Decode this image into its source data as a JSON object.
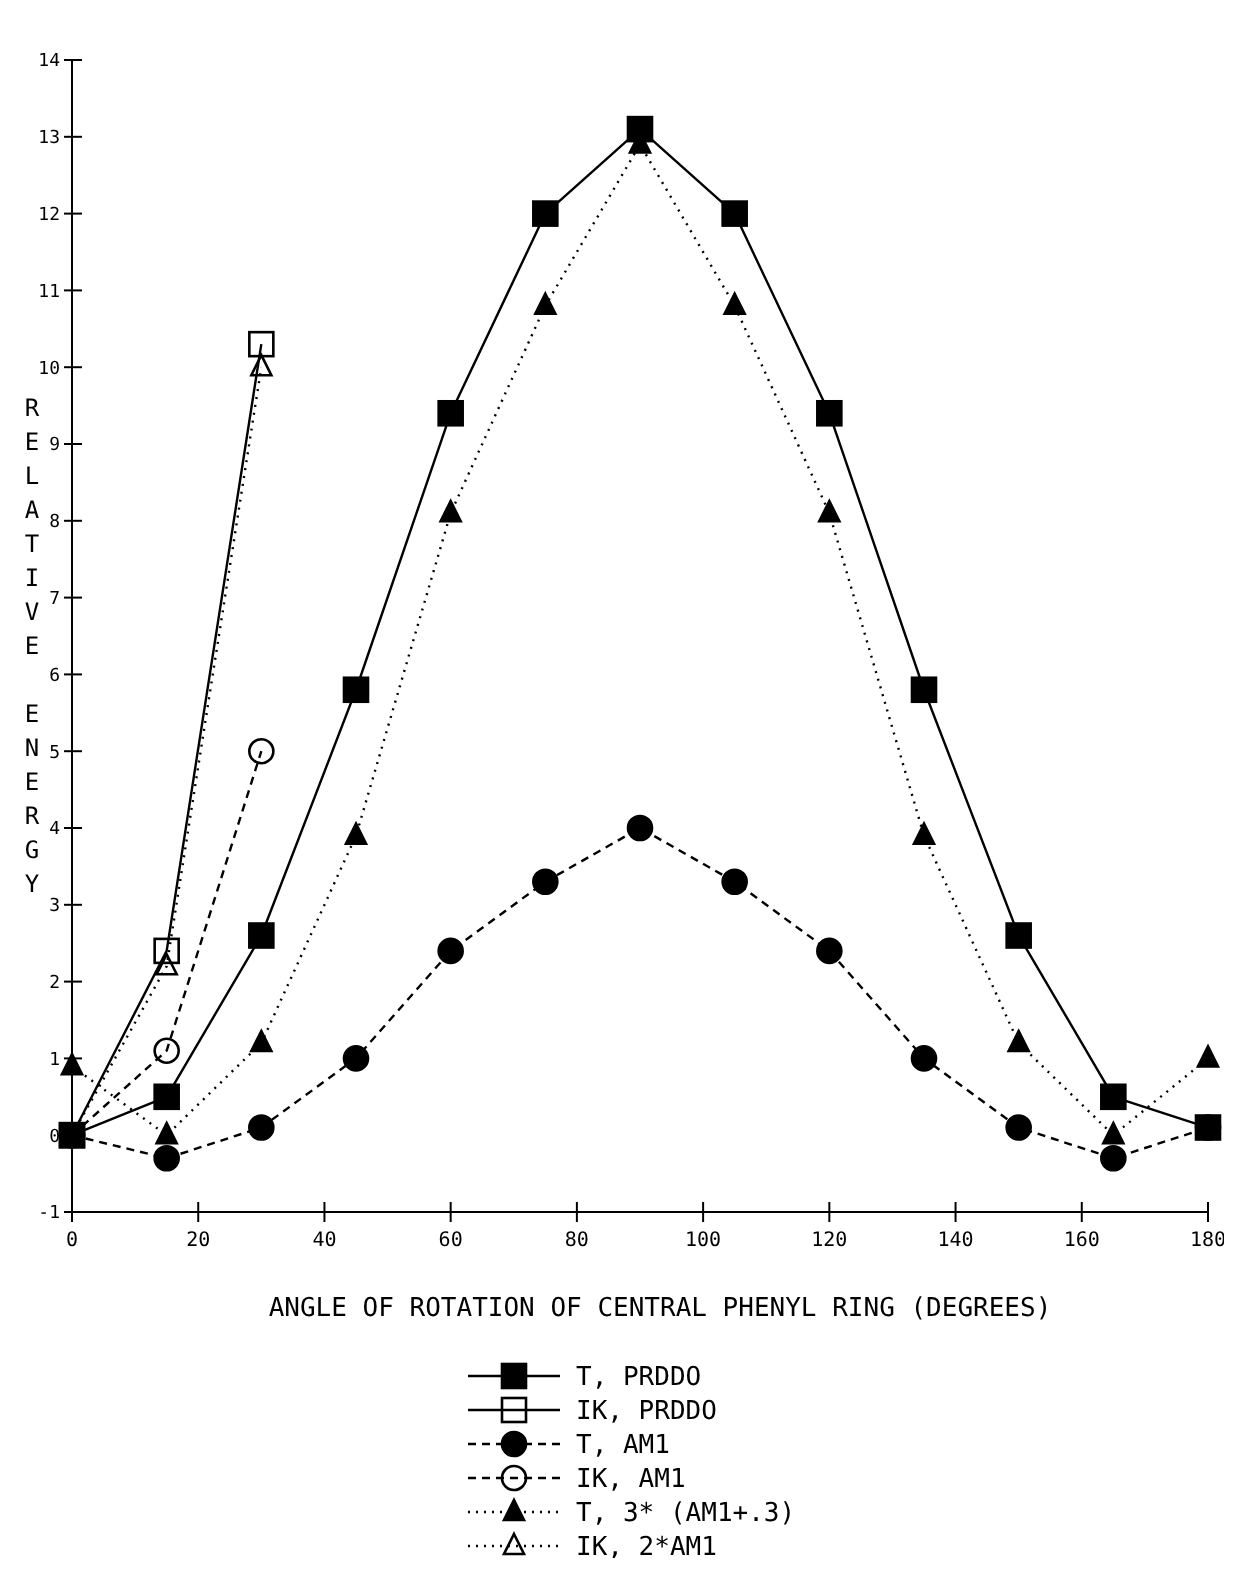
{
  "chart_data": {
    "type": "line",
    "xlabel": "ANGLE OF ROTATION OF CENTRAL PHENYL RING (DEGREES)",
    "ylabel": "RELATIVE ENERGY",
    "x": [
      0,
      15,
      30,
      45,
      60,
      75,
      90,
      105,
      120,
      135,
      150,
      165,
      180
    ],
    "xlim": [
      0,
      180
    ],
    "xticks": [
      0,
      20,
      40,
      60,
      80,
      100,
      120,
      140,
      160,
      180
    ],
    "ylim": [
      -1,
      14
    ],
    "yticks": [
      -1,
      0,
      1,
      2,
      3,
      4,
      5,
      6,
      7,
      8,
      9,
      10,
      11,
      12,
      13,
      14
    ],
    "grid": false,
    "legend": "bottom",
    "series": [
      {
        "name": "T, PRDDO",
        "color": "#000000",
        "marker": "square",
        "line_style": "solid",
        "values": [
          0,
          0.5,
          2.6,
          5.8,
          9.4,
          12.0,
          13.1,
          12.0,
          9.4,
          5.8,
          2.6,
          0.5,
          0.1
        ]
      },
      {
        "name": "IK, PRDDO",
        "color": "#000000",
        "marker": "square",
        "line_style": "solid",
        "x": [
          0,
          15,
          30
        ],
        "values": [
          0,
          2.4,
          10.3
        ]
      },
      {
        "name": "T, AM1",
        "color": "#000000",
        "marker": "circle",
        "line_style": "dashed",
        "values": [
          0,
          -0.3,
          0.1,
          1.0,
          2.4,
          3.3,
          4.0,
          3.3,
          2.4,
          1.0,
          0.1,
          -0.3,
          0.1
        ]
      },
      {
        "name": "IK, AM1",
        "color": "#000000",
        "marker": "circle",
        "line_style": "dashed",
        "x": [
          0,
          15,
          30
        ],
        "values": [
          0,
          1.1,
          5.0
        ]
      },
      {
        "name": "T, 3* (AM1+.3)",
        "color": "#000000",
        "marker": "triangle",
        "line_style": "dotted",
        "values": [
          0.9,
          0.0,
          1.2,
          3.9,
          8.1,
          10.8,
          12.9,
          10.8,
          8.1,
          3.9,
          1.2,
          0.0,
          1.0
        ]
      },
      {
        "name": "IK, 2*AM1",
        "color": "#000000",
        "marker": "triangle",
        "line_style": "dotted",
        "x": [
          0,
          15,
          30
        ],
        "values": [
          0,
          2.2,
          10.0
        ]
      }
    ]
  }
}
